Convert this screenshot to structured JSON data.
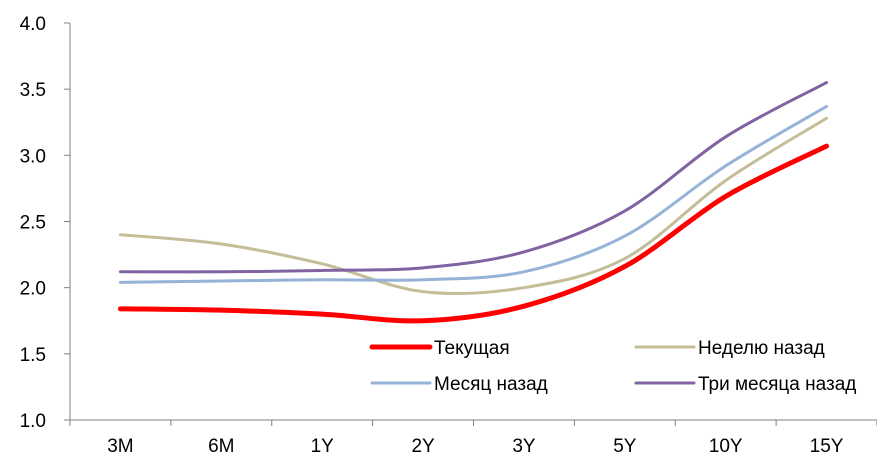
{
  "chart_data": {
    "type": "line",
    "title": "",
    "xlabel": "",
    "ylabel": "",
    "categories": [
      "3M",
      "6M",
      "1Y",
      "2Y",
      "3Y",
      "5Y",
      "10Y",
      "15Y"
    ],
    "ylim": [
      1.0,
      4.0
    ],
    "yticks": [
      "1.0",
      "1.5",
      "2.0",
      "2.5",
      "3.0",
      "3.5",
      "4.0"
    ],
    "grid": false,
    "legend_position": "bottom-right",
    "series": [
      {
        "name": "Текущая",
        "color": "#ff0000",
        "values": [
          1.84,
          1.83,
          1.8,
          1.75,
          1.86,
          2.16,
          2.69,
          3.07
        ]
      },
      {
        "name": "Неделю назад",
        "color": "#c4bd97",
        "values": [
          2.4,
          2.33,
          2.18,
          1.97,
          2.0,
          2.22,
          2.81,
          3.28
        ]
      },
      {
        "name": "Месяц назад",
        "color": "#95b3d7",
        "values": [
          2.04,
          2.05,
          2.06,
          2.06,
          2.12,
          2.39,
          2.92,
          3.37
        ]
      },
      {
        "name": "Три месяца назад",
        "color": "#8064a2",
        "values": [
          2.12,
          2.12,
          2.13,
          2.15,
          2.27,
          2.58,
          3.14,
          3.55
        ]
      }
    ]
  }
}
